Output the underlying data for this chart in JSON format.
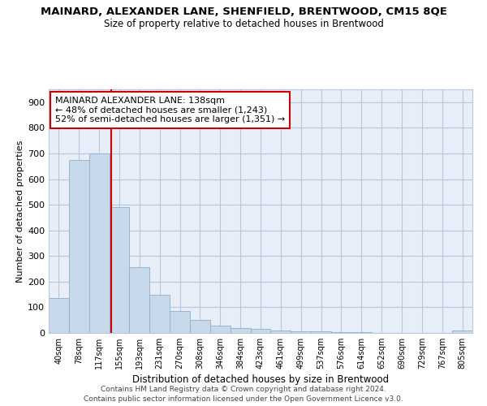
{
  "title": "MAINARD, ALEXANDER LANE, SHENFIELD, BRENTWOOD, CM15 8QE",
  "subtitle": "Size of property relative to detached houses in Brentwood",
  "xlabel": "Distribution of detached houses by size in Brentwood",
  "ylabel": "Number of detached properties",
  "bar_labels": [
    "40sqm",
    "78sqm",
    "117sqm",
    "155sqm",
    "193sqm",
    "231sqm",
    "270sqm",
    "308sqm",
    "346sqm",
    "384sqm",
    "423sqm",
    "461sqm",
    "499sqm",
    "537sqm",
    "576sqm",
    "614sqm",
    "652sqm",
    "690sqm",
    "729sqm",
    "767sqm",
    "805sqm"
  ],
  "bar_values": [
    135,
    675,
    700,
    490,
    255,
    150,
    85,
    50,
    28,
    20,
    16,
    10,
    7,
    5,
    3,
    2,
    1,
    1,
    1,
    1,
    8
  ],
  "bar_color": "#c9d9ec",
  "bar_edge_color": "#8ab0d0",
  "annotation_title": "MAINARD ALEXANDER LANE: 138sqm",
  "annotation_line1": "← 48% of detached houses are smaller (1,243)",
  "annotation_line2": "52% of semi-detached houses are larger (1,351) →",
  "annotation_box_color": "#ffffff",
  "annotation_box_edge": "#cc0000",
  "vline_color": "#cc0000",
  "vline_x": 2.6,
  "ylim": [
    0,
    950
  ],
  "yticks": [
    0,
    100,
    200,
    300,
    400,
    500,
    600,
    700,
    800,
    900
  ],
  "grid_color": "#b8c8dc",
  "background_color": "#e8eef8",
  "footer_line1": "Contains HM Land Registry data © Crown copyright and database right 2024.",
  "footer_line2": "Contains public sector information licensed under the Open Government Licence v3.0."
}
